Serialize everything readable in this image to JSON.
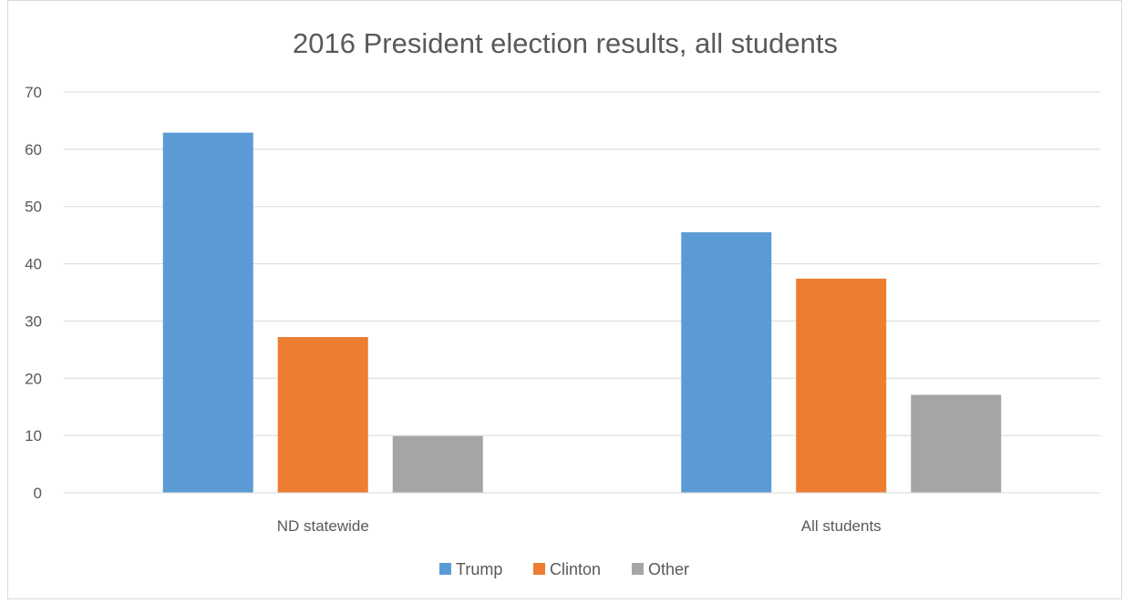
{
  "chart_data": {
    "type": "bar",
    "title": "2016 President election results, all students",
    "xlabel": "",
    "ylabel": "",
    "ylim": [
      0,
      70
    ],
    "yticks": [
      0,
      10,
      20,
      30,
      40,
      50,
      60,
      70
    ],
    "grid": true,
    "legend_position": "bottom",
    "categories": [
      "ND statewide",
      "All students"
    ],
    "series": [
      {
        "name": "Trump",
        "color": "#5b9bd5",
        "values": [
          62.9,
          45.5
        ]
      },
      {
        "name": "Clinton",
        "color": "#ed7d31",
        "values": [
          27.2,
          37.4
        ]
      },
      {
        "name": "Other",
        "color": "#a5a5a5",
        "values": [
          9.9,
          17.1
        ]
      }
    ]
  }
}
